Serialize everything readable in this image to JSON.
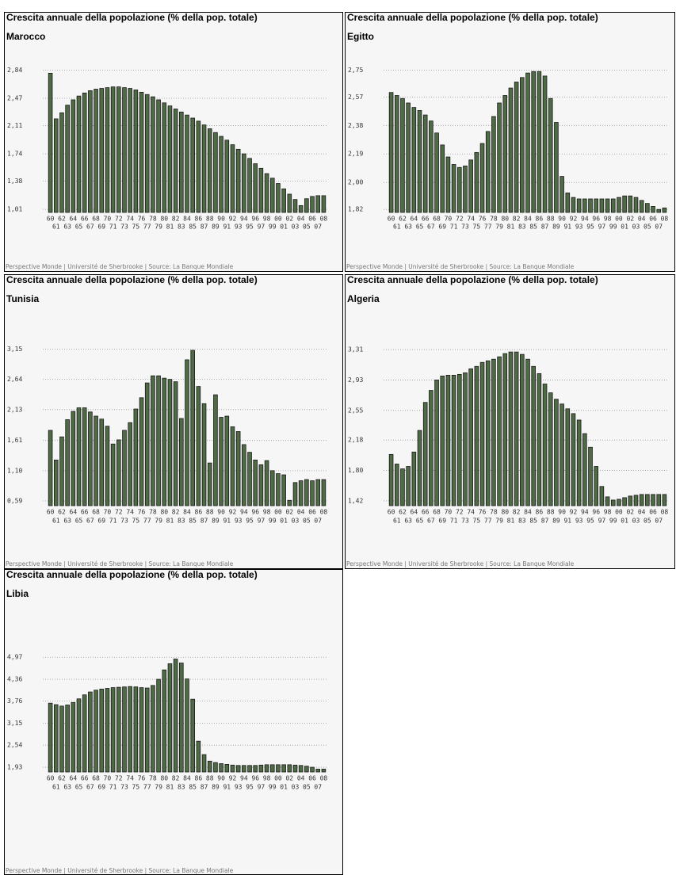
{
  "chart_data": [
    {
      "type": "bar",
      "title": "Crescita annuale della popolazione (% della pop. totale)",
      "subtitle": "Marocco",
      "footer": "Perspective Monde | Université de Sherbrooke | Source: La Banque Mondiale",
      "color": "#4f6b45",
      "categories": [
        "60",
        "61",
        "62",
        "63",
        "64",
        "65",
        "66",
        "67",
        "68",
        "69",
        "70",
        "71",
        "72",
        "73",
        "74",
        "75",
        "76",
        "77",
        "78",
        "79",
        "80",
        "81",
        "82",
        "83",
        "84",
        "85",
        "86",
        "87",
        "88",
        "89",
        "90",
        "91",
        "92",
        "93",
        "94",
        "95",
        "96",
        "97",
        "98",
        "99",
        "00",
        "01",
        "02",
        "03",
        "04",
        "05",
        "06",
        "07",
        "08"
      ],
      "values": [
        2.8,
        2.2,
        2.28,
        2.38,
        2.45,
        2.5,
        2.54,
        2.57,
        2.59,
        2.6,
        2.61,
        2.62,
        2.62,
        2.61,
        2.6,
        2.58,
        2.55,
        2.52,
        2.49,
        2.45,
        2.41,
        2.37,
        2.33,
        2.29,
        2.25,
        2.21,
        2.17,
        2.12,
        2.07,
        2.02,
        1.97,
        1.92,
        1.86,
        1.8,
        1.74,
        1.68,
        1.61,
        1.55,
        1.48,
        1.42,
        1.35,
        1.28,
        1.21,
        1.14,
        1.06,
        1.15,
        1.18,
        1.19,
        1.19
      ],
      "ylim": [
        0.97,
        2.96
      ],
      "yticks": [
        {
          "value": 2.84,
          "label": "2,84"
        },
        {
          "value": 2.47,
          "label": "2,47"
        },
        {
          "value": 2.11,
          "label": "2,11"
        },
        {
          "value": 1.74,
          "label": "1,74"
        },
        {
          "value": 1.38,
          "label": "1,38"
        },
        {
          "value": 1.01,
          "label": "1,01"
        }
      ],
      "grid": true
    },
    {
      "type": "bar",
      "title": "Crescita annuale della popolazione (% della pop. totale)",
      "subtitle": "Egitto",
      "footer": "Perspective Monde | Université de Sherbrooke | Source: La Banque Mondiale",
      "color": "#4f6b45",
      "categories": [
        "60",
        "61",
        "62",
        "63",
        "64",
        "65",
        "66",
        "67",
        "68",
        "69",
        "70",
        "71",
        "72",
        "73",
        "74",
        "75",
        "76",
        "77",
        "78",
        "79",
        "80",
        "81",
        "82",
        "83",
        "84",
        "85",
        "86",
        "87",
        "88",
        "89",
        "90",
        "91",
        "92",
        "93",
        "94",
        "95",
        "96",
        "97",
        "98",
        "99",
        "00",
        "01",
        "02",
        "03",
        "04",
        "05",
        "06",
        "07",
        "08"
      ],
      "values": [
        2.6,
        2.58,
        2.56,
        2.53,
        2.5,
        2.48,
        2.45,
        2.41,
        2.33,
        2.25,
        2.17,
        2.12,
        2.1,
        2.11,
        2.15,
        2.2,
        2.26,
        2.34,
        2.44,
        2.53,
        2.58,
        2.63,
        2.67,
        2.7,
        2.73,
        2.74,
        2.74,
        2.71,
        2.56,
        2.4,
        2.04,
        1.93,
        1.9,
        1.89,
        1.89,
        1.89,
        1.89,
        1.89,
        1.89,
        1.89,
        1.9,
        1.91,
        1.91,
        1.9,
        1.88,
        1.86,
        1.84,
        1.82,
        1.83
      ],
      "ylim": [
        1.8,
        2.81
      ],
      "yticks": [
        {
          "value": 2.75,
          "label": "2,75"
        },
        {
          "value": 2.57,
          "label": "2,57"
        },
        {
          "value": 2.38,
          "label": "2,38"
        },
        {
          "value": 2.19,
          "label": "2,19"
        },
        {
          "value": 2.0,
          "label": "2,00"
        },
        {
          "value": 1.82,
          "label": "1,82"
        }
      ],
      "grid": true
    },
    {
      "type": "bar",
      "title": "Crescita annuale della popolazione (% della pop. totale)",
      "subtitle": "Tunisia",
      "footer": "Perspective Monde | Université de Sherbrooke | Source: La Banque Mondiale",
      "color": "#4f6b45",
      "categories": [
        "60",
        "61",
        "62",
        "63",
        "64",
        "65",
        "66",
        "67",
        "68",
        "69",
        "70",
        "71",
        "72",
        "73",
        "74",
        "75",
        "76",
        "77",
        "78",
        "79",
        "80",
        "81",
        "82",
        "83",
        "84",
        "85",
        "86",
        "87",
        "88",
        "89",
        "90",
        "91",
        "92",
        "93",
        "94",
        "95",
        "96",
        "97",
        "98",
        "99",
        "00",
        "01",
        "02",
        "03",
        "04",
        "05",
        "06",
        "07",
        "08"
      ],
      "values": [
        1.78,
        1.28,
        1.67,
        1.96,
        2.1,
        2.16,
        2.16,
        2.09,
        2.02,
        1.97,
        1.85,
        1.55,
        1.62,
        1.78,
        1.91,
        2.14,
        2.33,
        2.58,
        2.7,
        2.7,
        2.66,
        2.64,
        2.6,
        1.98,
        2.97,
        3.13,
        2.52,
        2.23,
        1.23,
        2.38,
        2.0,
        2.02,
        1.84,
        1.76,
        1.54,
        1.41,
        1.28,
        1.2,
        1.27,
        1.1,
        1.05,
        1.03,
        0.6,
        0.9,
        0.93,
        0.95,
        0.93,
        0.95,
        0.95
      ],
      "ylim": [
        0.51,
        3.25
      ],
      "yticks": [
        {
          "value": 3.15,
          "label": "3,15"
        },
        {
          "value": 2.64,
          "label": "2,64"
        },
        {
          "value": 2.13,
          "label": "2,13"
        },
        {
          "value": 1.61,
          "label": "1,61"
        },
        {
          "value": 1.1,
          "label": "1,10"
        },
        {
          "value": 0.59,
          "label": "0,59"
        }
      ],
      "grid": true
    },
    {
      "type": "bar",
      "title": "Crescita annuale della popolazione (% della pop. totale)",
      "subtitle": "Algeria",
      "footer": "Perspective Monde | Université de Sherbrooke | Source: La Banque Mondiale",
      "color": "#4f6b45",
      "categories": [
        "60",
        "61",
        "62",
        "63",
        "64",
        "65",
        "66",
        "67",
        "68",
        "69",
        "70",
        "71",
        "72",
        "73",
        "74",
        "75",
        "76",
        "77",
        "78",
        "79",
        "80",
        "81",
        "82",
        "83",
        "84",
        "85",
        "86",
        "87",
        "88",
        "89",
        "90",
        "91",
        "92",
        "93",
        "94",
        "95",
        "96",
        "97",
        "98",
        "99",
        "00",
        "01",
        "02",
        "03",
        "04",
        "05",
        "06",
        "07",
        "08"
      ],
      "values": [
        2.0,
        1.88,
        1.82,
        1.85,
        2.03,
        2.3,
        2.65,
        2.8,
        2.93,
        2.98,
        2.99,
        2.99,
        3.0,
        3.02,
        3.07,
        3.1,
        3.15,
        3.17,
        3.19,
        3.22,
        3.26,
        3.28,
        3.28,
        3.25,
        3.19,
        3.1,
        3.01,
        2.88,
        2.77,
        2.69,
        2.63,
        2.57,
        2.51,
        2.43,
        2.26,
        2.09,
        1.85,
        1.6,
        1.47,
        1.43,
        1.44,
        1.46,
        1.48,
        1.49,
        1.5,
        1.5,
        1.5,
        1.5,
        1.5
      ],
      "ylim": [
        1.36,
        3.39
      ],
      "yticks": [
        {
          "value": 3.31,
          "label": "3,31"
        },
        {
          "value": 2.93,
          "label": "2,93"
        },
        {
          "value": 2.55,
          "label": "2,55"
        },
        {
          "value": 2.18,
          "label": "2,18"
        },
        {
          "value": 1.8,
          "label": "1,80"
        },
        {
          "value": 1.42,
          "label": "1,42"
        }
      ],
      "grid": true
    },
    {
      "type": "bar",
      "title": "Crescita annuale della popolazione (% della pop. totale)",
      "subtitle": "Libia",
      "footer": "Perspective Monde | Université de Sherbrooke | Source: La Banque Mondiale",
      "color": "#4f6b45",
      "categories": [
        "60",
        "61",
        "62",
        "63",
        "64",
        "65",
        "66",
        "67",
        "68",
        "69",
        "70",
        "71",
        "72",
        "73",
        "74",
        "75",
        "76",
        "77",
        "78",
        "79",
        "80",
        "81",
        "82",
        "83",
        "84",
        "85",
        "86",
        "87",
        "88",
        "89",
        "90",
        "91",
        "92",
        "93",
        "94",
        "95",
        "96",
        "97",
        "98",
        "99",
        "00",
        "01",
        "02",
        "03",
        "04",
        "05",
        "06",
        "07",
        "08"
      ],
      "values": [
        3.7,
        3.66,
        3.62,
        3.65,
        3.72,
        3.82,
        3.93,
        4.01,
        4.06,
        4.09,
        4.11,
        4.13,
        4.14,
        4.15,
        4.16,
        4.15,
        4.13,
        4.12,
        4.19,
        4.36,
        4.62,
        4.79,
        4.92,
        4.81,
        4.37,
        3.81,
        2.65,
        2.28,
        2.1,
        2.06,
        2.03,
        2.01,
        1.99,
        1.98,
        1.98,
        1.98,
        1.98,
        1.99,
        2.0,
        2.0,
        2.0,
        2.0,
        2.0,
        1.99,
        1.98,
        1.96,
        1.93,
        1.88,
        1.88
      ],
      "ylim": [
        1.8,
        5.15
      ],
      "yticks": [
        {
          "value": 4.97,
          "label": "4,97"
        },
        {
          "value": 4.36,
          "label": "4,36"
        },
        {
          "value": 3.76,
          "label": "3,76"
        },
        {
          "value": 3.15,
          "label": "3,15"
        },
        {
          "value": 2.54,
          "label": "2,54"
        },
        {
          "value": 1.93,
          "label": "1,93"
        }
      ],
      "grid": true
    }
  ]
}
